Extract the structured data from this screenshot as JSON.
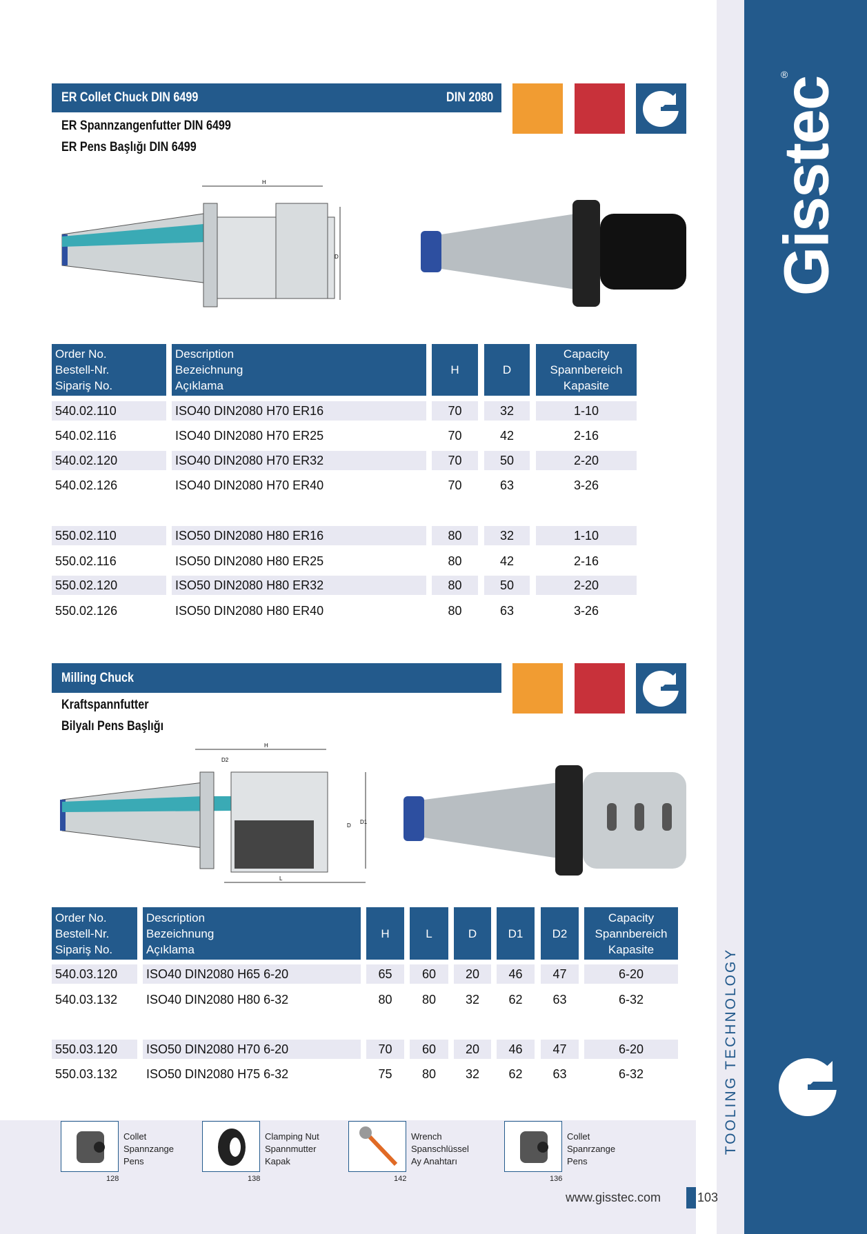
{
  "brand": {
    "name": "Gisstec",
    "registered": "®",
    "tagline": "TOOLING TECHNOLOGY",
    "website": "www.gisstec.com",
    "page_number": "103"
  },
  "colors": {
    "primary": "#235a8c",
    "orange": "#f19c32",
    "red": "#c8313a",
    "row_shade": "#e8e8f2"
  },
  "section1": {
    "title": "ER Collet Chuck DIN 6499",
    "standard": "DIN 2080",
    "subtitle_de": "ER Spannzangenfutter DIN 6499",
    "subtitle_tr": "ER Pens Başlığı DIN 6499",
    "drawing_labels": {
      "h": "H",
      "d": "D"
    },
    "headers": {
      "order": [
        "Order No.",
        "Bestell-Nr.",
        "Sipariş No."
      ],
      "desc": [
        "Description",
        "Bezeichnung",
        "Açıklama"
      ],
      "h": "H",
      "d": "D",
      "cap": [
        "Capacity",
        "Spannbereich",
        "Kapasite"
      ]
    },
    "rows": [
      [
        "540.02.110",
        "ISO40 DIN2080 H70 ER16",
        "70",
        "32",
        "1-10"
      ],
      [
        "540.02.116",
        "ISO40 DIN2080 H70 ER25",
        "70",
        "42",
        "2-16"
      ],
      [
        "540.02.120",
        "ISO40 DIN2080 H70 ER32",
        "70",
        "50",
        "2-20"
      ],
      [
        "540.02.126",
        "ISO40 DIN2080 H70 ER40",
        "70",
        "63",
        "3-26"
      ],
      [
        "550.02.110",
        "ISO50 DIN2080 H80 ER16",
        "80",
        "32",
        "1-10"
      ],
      [
        "550.02.116",
        "ISO50 DIN2080 H80 ER25",
        "80",
        "42",
        "2-16"
      ],
      [
        "550.02.120",
        "ISO50 DIN2080 H80 ER32",
        "80",
        "50",
        "2-20"
      ],
      [
        "550.02.126",
        "ISO50 DIN2080 H80 ER40",
        "80",
        "63",
        "3-26"
      ]
    ]
  },
  "section2": {
    "title": "Milling Chuck",
    "subtitle_de": "Kraftspannfutter",
    "subtitle_tr": "Bilyalı Pens Başlığı",
    "drawing_labels": {
      "h": "H",
      "l": "L",
      "d": "D",
      "d1": "D1",
      "d2": "D2"
    },
    "headers": {
      "order": [
        "Order No.",
        "Bestell-Nr.",
        "Sipariş No."
      ],
      "desc": [
        "Description",
        "Bezeichnung",
        "Açıklama"
      ],
      "h": "H",
      "l": "L",
      "d": "D",
      "d1": "D1",
      "d2": "D2",
      "cap": [
        "Capacity",
        "Spannbereich",
        "Kapasite"
      ]
    },
    "rows": [
      [
        "540.03.120",
        "ISO40 DIN2080 H65 6-20",
        "65",
        "60",
        "20",
        "46",
        "47",
        "6-20"
      ],
      [
        "540.03.132",
        "ISO40 DIN2080 H80 6-32",
        "80",
        "80",
        "32",
        "62",
        "63",
        "6-32"
      ],
      [
        "550.03.120",
        "ISO50 DIN2080 H70 6-20",
        "70",
        "60",
        "20",
        "46",
        "47",
        "6-20"
      ],
      [
        "550.03.132",
        "ISO50 DIN2080 H75 6-32",
        "75",
        "80",
        "32",
        "62",
        "63",
        "6-32"
      ]
    ]
  },
  "accessories": [
    {
      "lines": [
        "Collet",
        "Spannzange",
        "Pens"
      ],
      "page": "128",
      "icon": "collet-icon"
    },
    {
      "lines": [
        "Clamping Nut",
        "Spannmutter",
        "Kapak"
      ],
      "page": "138",
      "icon": "clamping-nut-icon"
    },
    {
      "lines": [
        "Wrench",
        "Spanschlüssel",
        "Ay Anahtarı"
      ],
      "page": "142",
      "icon": "wrench-icon"
    },
    {
      "lines": [
        "Collet",
        "Spanrzange",
        "Pens"
      ],
      "page": "136",
      "icon": "collet-icon"
    }
  ]
}
